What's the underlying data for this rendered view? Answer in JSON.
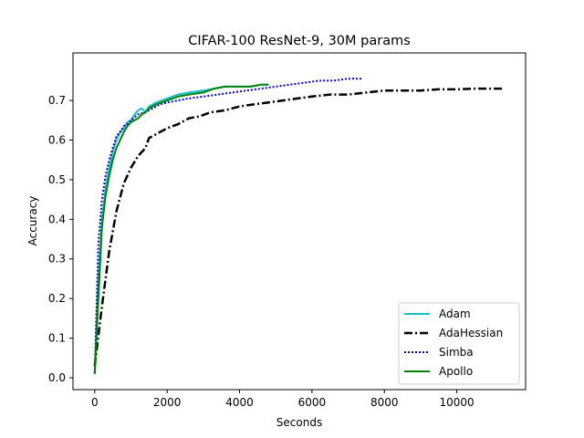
{
  "chart_data": {
    "type": "line",
    "title": "CIFAR-100 ResNet-9, 30M params",
    "xlabel": "Seconds",
    "ylabel": "Accuracy",
    "xlim": [
      -600,
      11900
    ],
    "ylim": [
      -0.03,
      0.82
    ],
    "x_ticks": [
      0,
      2000,
      4000,
      6000,
      8000,
      10000
    ],
    "y_ticks": [
      0.0,
      0.1,
      0.2,
      0.3,
      0.4,
      0.5,
      0.6,
      0.7
    ],
    "grid": false,
    "legend_position": "lower-right",
    "series": [
      {
        "name": "Adam",
        "color": "#17becf",
        "style": "solid",
        "x": [
          0,
          100,
          200,
          300,
          400,
          500,
          600,
          700,
          800,
          900,
          1000,
          1100,
          1200,
          1300,
          1400,
          1500,
          1700,
          2000,
          2300,
          2600,
          3000,
          3300,
          3600,
          4000,
          4300,
          4600,
          4800
        ],
        "y": [
          0.01,
          0.25,
          0.4,
          0.48,
          0.53,
          0.57,
          0.6,
          0.62,
          0.63,
          0.645,
          0.65,
          0.665,
          0.675,
          0.68,
          0.67,
          0.685,
          0.695,
          0.705,
          0.715,
          0.72,
          0.725,
          0.73,
          0.735,
          0.735,
          0.735,
          0.74,
          0.74
        ]
      },
      {
        "name": "AdaHessian",
        "color": "#000000",
        "style": "dashdot",
        "x": [
          0,
          200,
          400,
          600,
          800,
          1000,
          1200,
          1400,
          1500,
          1800,
          2000,
          2300,
          2600,
          2900,
          3200,
          3600,
          4000,
          4400,
          4800,
          5200,
          5600,
          6000,
          6500,
          7000,
          7500,
          8000,
          8500,
          9000,
          9500,
          10000,
          10500,
          11000,
          11300
        ],
        "y": [
          0.03,
          0.18,
          0.32,
          0.42,
          0.49,
          0.53,
          0.56,
          0.58,
          0.605,
          0.62,
          0.63,
          0.64,
          0.655,
          0.66,
          0.67,
          0.675,
          0.685,
          0.69,
          0.695,
          0.7,
          0.705,
          0.71,
          0.715,
          0.715,
          0.72,
          0.725,
          0.725,
          0.725,
          0.728,
          0.728,
          0.73,
          0.73,
          0.73
        ]
      },
      {
        "name": "Simba",
        "color": "#0000cc",
        "style": "dotted",
        "x": [
          0,
          100,
          200,
          300,
          400,
          500,
          600,
          700,
          800,
          900,
          1000,
          1200,
          1400,
          1600,
          1800,
          2000,
          2300,
          2600,
          3000,
          3400,
          3800,
          4200,
          4600,
          5000,
          5400,
          5800,
          6200,
          6600,
          7000,
          7400
        ],
        "y": [
          0.01,
          0.34,
          0.45,
          0.51,
          0.55,
          0.58,
          0.61,
          0.62,
          0.635,
          0.64,
          0.65,
          0.665,
          0.67,
          0.68,
          0.69,
          0.695,
          0.7,
          0.705,
          0.71,
          0.715,
          0.72,
          0.725,
          0.73,
          0.735,
          0.74,
          0.745,
          0.75,
          0.75,
          0.755,
          0.755
        ]
      },
      {
        "name": "Apollo",
        "color": "#008000",
        "style": "solid",
        "x": [
          0,
          100,
          200,
          300,
          400,
          500,
          600,
          700,
          800,
          900,
          1000,
          1100,
          1200,
          1300,
          1400,
          1500,
          1700,
          2000,
          2300,
          2600,
          3000,
          3300,
          3600,
          4000,
          4300,
          4600,
          4800
        ],
        "y": [
          0.01,
          0.2,
          0.38,
          0.46,
          0.51,
          0.55,
          0.58,
          0.6,
          0.62,
          0.635,
          0.645,
          0.65,
          0.655,
          0.665,
          0.67,
          0.68,
          0.69,
          0.7,
          0.71,
          0.715,
          0.72,
          0.73,
          0.735,
          0.735,
          0.735,
          0.74,
          0.74
        ]
      }
    ]
  }
}
